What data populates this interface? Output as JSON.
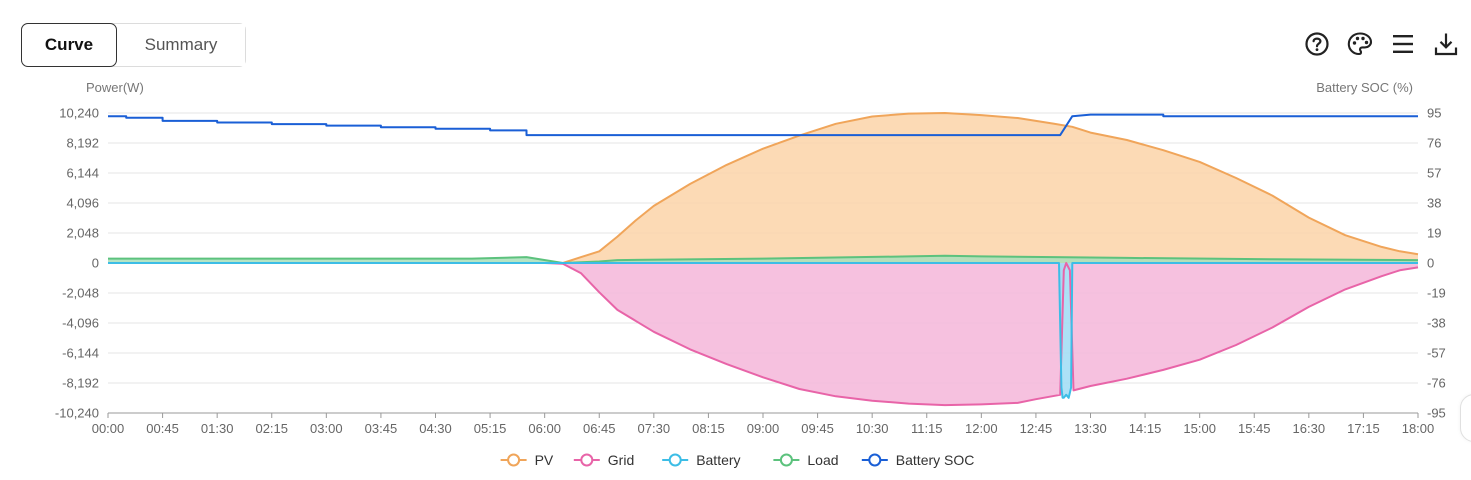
{
  "tabs": [
    {
      "label": "Curve",
      "active": true
    },
    {
      "label": "Summary",
      "active": false
    }
  ],
  "toolbar": {
    "icons": [
      "help-icon",
      "palette-icon",
      "menu-icon",
      "download-icon"
    ]
  },
  "chart_data": {
    "type": "area",
    "ylabel_left": "Power(W)",
    "ylabel_right": "Battery SOC (%)",
    "y_left_ticks": [
      "10,240",
      "8,192",
      "6,144",
      "4,096",
      "2,048",
      "0",
      "-2,048",
      "-4,096",
      "-6,144",
      "-8,192",
      "-10,240"
    ],
    "y_right_ticks": [
      "95",
      "76",
      "57",
      "38",
      "19",
      "0",
      "-19",
      "-38",
      "-57",
      "-76",
      "-95"
    ],
    "ylim_left": [
      -10240,
      10240
    ],
    "ylim_right": [
      -95,
      95
    ],
    "x_ticks": [
      "00:00",
      "00:45",
      "01:30",
      "02:15",
      "03:00",
      "03:45",
      "04:30",
      "05:15",
      "06:00",
      "06:45",
      "07:30",
      "08:15",
      "09:00",
      "09:45",
      "10:30",
      "11:15",
      "12:00",
      "12:45",
      "13:30",
      "14:15",
      "15:00",
      "15:45",
      "16:30",
      "17:15",
      "18:00"
    ],
    "grid": true,
    "legend_position": "bottom-center",
    "series": [
      {
        "name": "PV",
        "color": "#f0a55a",
        "fill": "#fcd3a8",
        "axis": "left",
        "x": [
          "00:00",
          "06:00",
          "06:15",
          "06:30",
          "06:45",
          "07:00",
          "07:15",
          "07:30",
          "08:00",
          "08:30",
          "09:00",
          "09:30",
          "10:00",
          "10:30",
          "11:00",
          "11:30",
          "12:00",
          "12:30",
          "13:00",
          "13:15",
          "13:30",
          "14:00",
          "14:30",
          "15:00",
          "15:30",
          "16:00",
          "16:30",
          "17:00",
          "17:30",
          "17:45",
          "18:00"
        ],
        "values": [
          0,
          0,
          0,
          400,
          800,
          1800,
          2900,
          3900,
          5400,
          6700,
          7800,
          8700,
          9500,
          10000,
          10200,
          10240,
          10100,
          9900,
          9500,
          9300,
          8900,
          8400,
          7700,
          6900,
          5800,
          4600,
          3100,
          1900,
          1100,
          800,
          600
        ]
      },
      {
        "name": "Grid",
        "color": "#e864a8",
        "fill": "#f5b6d9",
        "axis": "left",
        "x": [
          "00:00",
          "06:00",
          "06:15",
          "06:30",
          "06:45",
          "07:00",
          "07:30",
          "08:00",
          "08:30",
          "09:00",
          "09:30",
          "10:00",
          "10:30",
          "11:00",
          "11:30",
          "12:00",
          "12:30",
          "12:45",
          "13:05",
          "13:08",
          "13:10",
          "13:13",
          "13:16",
          "13:30",
          "14:00",
          "14:30",
          "15:00",
          "15:30",
          "16:00",
          "16:30",
          "17:00",
          "17:30",
          "17:45",
          "18:00"
        ],
        "values": [
          0,
          0,
          -50,
          -700,
          -2000,
          -3200,
          -4700,
          -5900,
          -6900,
          -7800,
          -8600,
          -9100,
          -9400,
          -9600,
          -9700,
          -9650,
          -9550,
          -9300,
          -9000,
          -500,
          0,
          -500,
          -8700,
          -8400,
          -7900,
          -7300,
          -6600,
          -5600,
          -4400,
          -3000,
          -1800,
          -900,
          -500,
          -300
        ]
      },
      {
        "name": "Battery",
        "color": "#3cbde6",
        "fill": "#9fdcf5",
        "axis": "left",
        "x": [
          "00:00",
          "13:04",
          "13:06",
          "13:07",
          "13:08",
          "13:10",
          "13:12",
          "13:14",
          "13:15",
          "13:17",
          "18:00"
        ],
        "values": [
          0,
          0,
          -8500,
          -9200,
          -9200,
          -9000,
          -9200,
          -8500,
          0,
          0,
          0
        ]
      },
      {
        "name": "Load",
        "color": "#5cc27d",
        "fill": "#a8dfba",
        "axis": "left",
        "x": [
          "00:00",
          "05:00",
          "05:45",
          "06:15",
          "06:45",
          "07:00",
          "09:00",
          "11:00",
          "11:30",
          "12:00",
          "13:00",
          "14:00",
          "16:00",
          "18:00"
        ],
        "values": [
          300,
          300,
          400,
          0,
          100,
          200,
          300,
          450,
          500,
          450,
          400,
          350,
          250,
          200
        ]
      },
      {
        "name": "Battery SOC",
        "color": "#1a5fd6",
        "fill": "none",
        "axis": "right",
        "x": [
          "00:00",
          "00:15",
          "00:15",
          "00:45",
          "00:45",
          "01:30",
          "01:30",
          "02:15",
          "02:15",
          "03:00",
          "03:00",
          "03:45",
          "03:45",
          "04:30",
          "04:30",
          "05:15",
          "05:15",
          "05:45",
          "05:45",
          "13:05",
          "13:15",
          "13:30",
          "14:30",
          "14:30",
          "18:00"
        ],
        "values": [
          93,
          93,
          92,
          92,
          90,
          90,
          89,
          89,
          88,
          88,
          87,
          87,
          86,
          86,
          85,
          85,
          84,
          84,
          81,
          81,
          93,
          94,
          94,
          93,
          93
        ]
      }
    ]
  }
}
